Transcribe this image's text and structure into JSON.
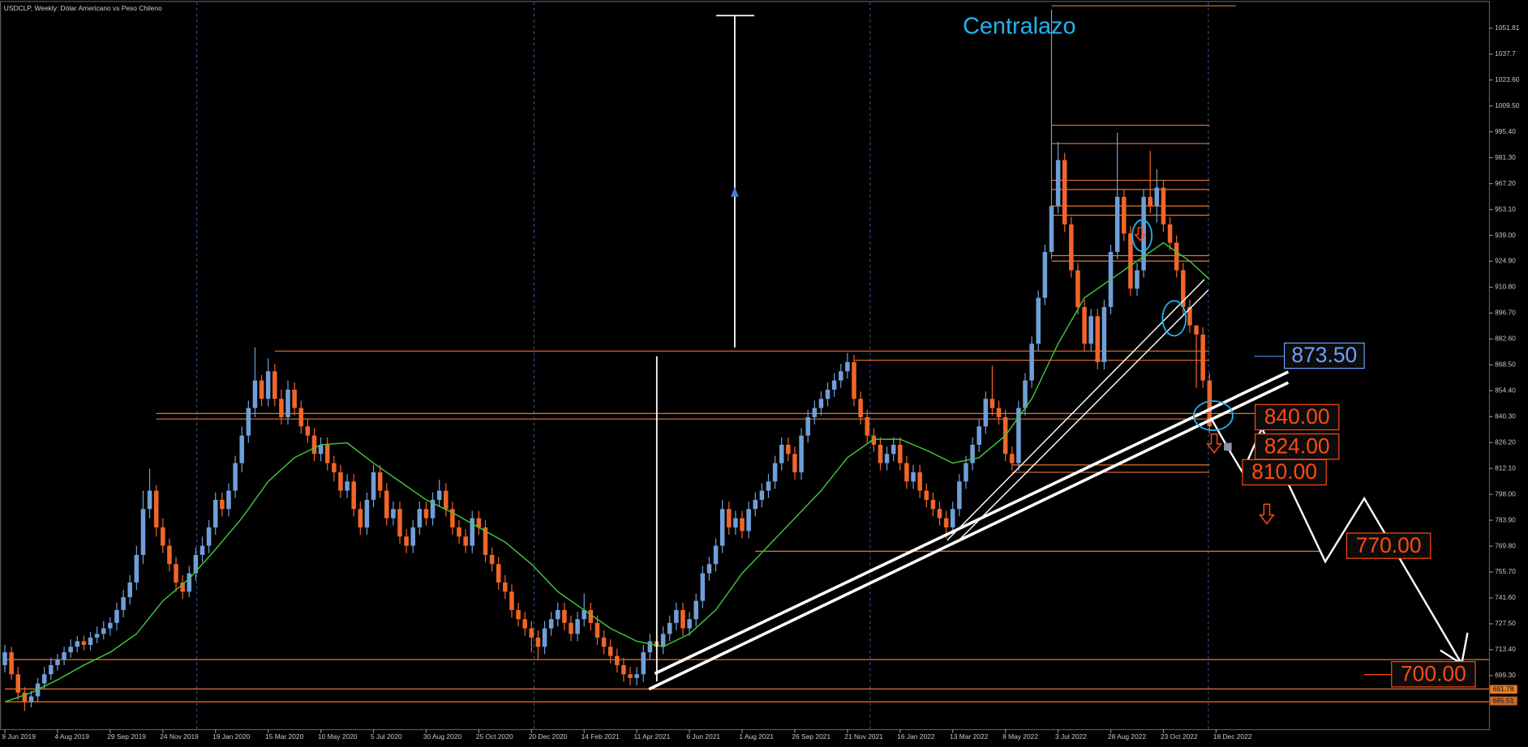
{
  "chart_data": {
    "type": "candlestick",
    "title": "USDCLP, Weekly:  Dólar Americano vs Peso Chileno",
    "annotation": "Centralazo",
    "up_color": "#6f9fd8",
    "down_color": "#f0652a",
    "open": [
      705,
      712,
      700,
      690,
      685,
      688,
      695,
      700,
      705,
      708,
      712,
      715,
      718,
      716,
      720,
      722,
      725,
      728,
      735,
      742,
      750,
      765,
      790,
      800,
      780,
      770,
      760,
      750,
      745,
      755,
      765,
      770,
      780,
      795,
      790,
      800,
      815,
      830,
      845,
      860,
      850,
      865,
      850,
      840,
      855,
      845,
      835,
      830,
      820,
      825,
      815,
      810,
      800,
      805,
      790,
      780,
      795,
      810,
      800,
      785,
      790,
      775,
      770,
      780,
      790,
      785,
      795,
      800,
      790,
      780,
      775,
      770,
      785,
      780,
      765,
      760,
      750,
      745,
      735,
      730,
      725,
      720,
      715,
      725,
      730,
      735,
      728,
      722,
      730,
      735,
      728,
      720,
      715,
      710,
      705,
      700,
      698,
      700,
      712,
      718,
      715,
      722,
      728,
      735,
      725,
      730,
      740,
      755,
      760,
      770,
      790,
      780,
      785,
      778,
      790,
      795,
      800,
      805,
      815,
      825,
      820,
      810,
      830,
      840,
      845,
      850,
      855,
      860,
      865,
      870,
      850,
      840,
      830,
      825,
      815,
      820,
      825,
      815,
      805,
      810,
      800,
      795,
      790,
      785,
      780,
      790,
      805,
      815,
      825,
      835,
      850,
      845,
      840,
      820,
      815,
      845,
      860,
      880,
      905,
      930,
      955,
      980,
      945,
      920,
      900,
      880,
      895,
      870,
      900,
      930,
      960,
      940,
      910,
      920,
      960,
      955,
      965,
      945,
      935,
      920,
      900,
      890,
      885,
      860
    ],
    "high": [
      716,
      715,
      704,
      693,
      691,
      698,
      704,
      709,
      711,
      715,
      719,
      721,
      721,
      723,
      726,
      729,
      731,
      739,
      746,
      754,
      770,
      800,
      812,
      803,
      785,
      774,
      764,
      754,
      759,
      769,
      775,
      784,
      799,
      799,
      804,
      819,
      835,
      849,
      878,
      863,
      872,
      869,
      855,
      860,
      859,
      849,
      839,
      834,
      829,
      829,
      819,
      814,
      809,
      809,
      794,
      799,
      814,
      814,
      804,
      794,
      794,
      779,
      784,
      794,
      794,
      799,
      806,
      804,
      794,
      784,
      779,
      789,
      789,
      784,
      769,
      764,
      754,
      749,
      739,
      734,
      729,
      724,
      729,
      734,
      739,
      739,
      732,
      734,
      744,
      739,
      732,
      724,
      719,
      714,
      709,
      704,
      704,
      716,
      722,
      722,
      726,
      732,
      739,
      739,
      734,
      744,
      759,
      764,
      774,
      795,
      794,
      789,
      789,
      794,
      799,
      804,
      809,
      819,
      829,
      829,
      824,
      834,
      844,
      849,
      854,
      859,
      864,
      869,
      875,
      874,
      854,
      844,
      834,
      829,
      824,
      829,
      829,
      819,
      814,
      814,
      804,
      799,
      794,
      789,
      794,
      809,
      819,
      829,
      839,
      854,
      868,
      849,
      844,
      824,
      849,
      864,
      884,
      909,
      934,
      1062,
      990,
      984,
      949,
      924,
      904,
      899,
      899,
      904,
      934,
      995,
      964,
      944,
      924,
      964,
      985,
      975,
      969,
      949,
      939,
      924,
      904,
      889,
      889,
      864
    ],
    "low": [
      701,
      697,
      686,
      680,
      682,
      685,
      692,
      697,
      702,
      705,
      709,
      712,
      713,
      713,
      717,
      719,
      721,
      724,
      731,
      738,
      746,
      760,
      785,
      775,
      766,
      756,
      745,
      741,
      742,
      751,
      761,
      766,
      776,
      786,
      786,
      796,
      810,
      826,
      840,
      846,
      846,
      846,
      836,
      836,
      841,
      831,
      826,
      816,
      816,
      811,
      805,
      796,
      796,
      786,
      776,
      776,
      791,
      796,
      781,
      781,
      771,
      766,
      766,
      776,
      781,
      781,
      791,
      786,
      776,
      771,
      766,
      766,
      776,
      761,
      756,
      746,
      741,
      731,
      726,
      721,
      712,
      708,
      711,
      721,
      726,
      724,
      718,
      718,
      726,
      724,
      716,
      711,
      706,
      701,
      696,
      694,
      694,
      696,
      708,
      711,
      711,
      718,
      724,
      721,
      721,
      726,
      736,
      751,
      756,
      766,
      776,
      776,
      774,
      774,
      786,
      791,
      796,
      801,
      811,
      816,
      806,
      806,
      826,
      836,
      841,
      846,
      851,
      856,
      861,
      846,
      836,
      826,
      821,
      811,
      811,
      816,
      811,
      801,
      801,
      796,
      791,
      786,
      781,
      774,
      776,
      786,
      801,
      811,
      821,
      831,
      841,
      836,
      816,
      811,
      811,
      841,
      856,
      876,
      901,
      926,
      951,
      941,
      916,
      896,
      876,
      876,
      866,
      866,
      896,
      926,
      936,
      906,
      906,
      916,
      951,
      946,
      941,
      931,
      916,
      896,
      886,
      856,
      856,
      831
    ],
    "close": [
      712,
      700,
      690,
      685,
      688,
      695,
      700,
      705,
      708,
      712,
      715,
      718,
      716,
      720,
      722,
      725,
      728,
      735,
      742,
      750,
      765,
      790,
      800,
      780,
      770,
      760,
      750,
      745,
      755,
      765,
      770,
      780,
      795,
      790,
      800,
      815,
      830,
      845,
      860,
      850,
      865,
      850,
      840,
      855,
      845,
      835,
      830,
      820,
      825,
      815,
      810,
      800,
      805,
      790,
      780,
      795,
      810,
      800,
      785,
      790,
      775,
      770,
      780,
      790,
      785,
      795,
      800,
      790,
      780,
      775,
      770,
      785,
      780,
      765,
      760,
      750,
      745,
      735,
      730,
      725,
      720,
      715,
      725,
      730,
      735,
      728,
      722,
      730,
      735,
      728,
      720,
      715,
      710,
      705,
      700,
      698,
      700,
      712,
      718,
      715,
      722,
      728,
      735,
      725,
      730,
      740,
      755,
      760,
      770,
      790,
      780,
      785,
      778,
      790,
      795,
      800,
      805,
      815,
      825,
      820,
      810,
      830,
      840,
      845,
      850,
      855,
      860,
      865,
      870,
      850,
      840,
      830,
      825,
      815,
      820,
      825,
      815,
      805,
      810,
      800,
      795,
      790,
      785,
      780,
      790,
      805,
      815,
      825,
      835,
      850,
      845,
      840,
      820,
      815,
      845,
      860,
      880,
      905,
      930,
      955,
      980,
      945,
      920,
      900,
      880,
      895,
      870,
      900,
      930,
      960,
      940,
      910,
      920,
      960,
      955,
      965,
      945,
      935,
      920,
      900,
      890,
      885,
      860,
      835
    ],
    "ma": {
      "color": "#3cc83c",
      "x": [
        0,
        4,
        8,
        12,
        16,
        20,
        24,
        28,
        32,
        36,
        40,
        44,
        48,
        52,
        56,
        60,
        64,
        68,
        72,
        76,
        80,
        84,
        88,
        92,
        96,
        100,
        104,
        108,
        112,
        116,
        120,
        124,
        128,
        132,
        136,
        140,
        144,
        148,
        152,
        156,
        160,
        164,
        168,
        172,
        176,
        180,
        183
      ],
      "values": [
        685,
        690,
        697,
        705,
        712,
        722,
        740,
        752,
        768,
        785,
        805,
        818,
        825,
        826,
        815,
        805,
        795,
        788,
        780,
        772,
        760,
        745,
        735,
        725,
        718,
        715,
        722,
        735,
        755,
        770,
        785,
        800,
        818,
        828,
        828,
        822,
        815,
        818,
        830,
        850,
        880,
        905,
        915,
        925,
        935,
        925,
        915
      ]
    },
    "levels": [
      {
        "value": 1064,
        "from": 159,
        "to": 187
      },
      {
        "value": 999,
        "from": 159,
        "to": 183
      },
      {
        "value": 989,
        "from": 159,
        "to": 183
      },
      {
        "value": 969,
        "from": 159,
        "to": 183
      },
      {
        "value": 964,
        "from": 159,
        "to": 183
      },
      {
        "value": 955,
        "from": 159,
        "to": 183
      },
      {
        "value": 950,
        "from": 159,
        "to": 183
      },
      {
        "value": 928,
        "from": 159,
        "to": 183
      },
      {
        "value": 925,
        "from": 159,
        "to": 183
      },
      {
        "value": 876,
        "from": 41,
        "to": 183
      },
      {
        "value": 871,
        "from": 129,
        "to": 183
      },
      {
        "value": 842,
        "from": 23,
        "to": 192
      },
      {
        "value": 839,
        "from": 23,
        "to": 183
      },
      {
        "value": 814,
        "from": 153,
        "to": 183
      },
      {
        "value": 810,
        "from": 153,
        "to": 183
      },
      {
        "value": 767,
        "from": 114,
        "to": 200
      },
      {
        "value": 708,
        "from": 0,
        "to": 226
      },
      {
        "value": 692,
        "from": 0,
        "to": 226
      },
      {
        "value": 685,
        "from": 0,
        "to": 226
      }
    ],
    "level_color": "#e8742e",
    "price_labels": [
      {
        "value": 873.5,
        "label": "873.50",
        "color": "#6f9fff"
      },
      {
        "value": 840,
        "label": "840.00",
        "color": "#ff4a12"
      },
      {
        "value": 824,
        "label": "824.00",
        "color": "#ff4a12"
      },
      {
        "value": 810,
        "label": "810.00",
        "color": "#ff4a12"
      },
      {
        "value": 770,
        "label": "770.00",
        "color": "#ff4a12"
      },
      {
        "value": 700,
        "label": "700.00",
        "color": "#ff4a12"
      }
    ],
    "axis_markers": [
      691.78,
      {
        "value": 685.51,
        "label": "685.51"
      }
    ],
    "xlim": [
      -0.74,
      225.46
    ],
    "ylim": [
      670.15,
      1065.06
    ],
    "yticks": [
      {
        "value": 699.3,
        "label": "699.30"
      },
      {
        "value": 713.4,
        "label": "713.40"
      },
      {
        "value": 727.5,
        "label": "727.50"
      },
      {
        "value": 741.6,
        "label": "741.60"
      },
      {
        "value": 755.7,
        "label": "755.70"
      },
      {
        "value": 769.8,
        "label": "769.80"
      },
      {
        "value": 783.9,
        "label": "783.90"
      },
      {
        "value": 798,
        "label": "798.00"
      },
      {
        "value": 812.1,
        "label": "812.10"
      },
      {
        "value": 826.2,
        "label": "826.20"
      },
      {
        "value": 840.3,
        "label": "840.30"
      },
      {
        "value": 854.4,
        "label": "854.40"
      },
      {
        "value": 868.5,
        "label": "868.50"
      },
      {
        "value": 882.6,
        "label": "882.60"
      },
      {
        "value": 896.7,
        "label": "896.70"
      },
      {
        "value": 910.8,
        "label": "910.80"
      },
      {
        "value": 924.9,
        "label": "924.90"
      },
      {
        "value": 939,
        "label": "939.00"
      },
      {
        "value": 953.1,
        "label": "953.10"
      },
      {
        "value": 967.2,
        "label": "967.20"
      },
      {
        "value": 981.3,
        "label": "981.30"
      },
      {
        "value": 995.4,
        "label": "995.40"
      },
      {
        "value": 1009.5,
        "label": "1009.50"
      },
      {
        "value": 1023.6,
        "label": "1023.60"
      },
      1037.7,
      1051.81
    ],
    "xticks": [
      {
        "value": 0,
        "label": "9 Jun 2019"
      },
      {
        "value": 8,
        "label": "4 Aug 2019"
      },
      {
        "value": 16,
        "label": "29 Sep 2019"
      },
      {
        "value": 24,
        "label": "24 Nov 2019"
      },
      {
        "value": 32,
        "label": "19 Jan 2020"
      },
      {
        "value": 40,
        "label": "15 Mar 2020"
      },
      {
        "value": 48,
        "label": "10 May 2020"
      },
      {
        "value": 56,
        "label": "5 Jul 2020"
      },
      {
        "value": 64,
        "label": "30 Aug 2020"
      },
      {
        "value": 72,
        "label": "25 Oct 2020"
      },
      {
        "value": 80,
        "label": "20 Dec 2020"
      },
      {
        "value": 88,
        "label": "14 Feb 2021"
      },
      {
        "value": 96,
        "label": "11 Apr 2021"
      },
      {
        "value": 104,
        "label": "6 Jun 2021"
      },
      {
        "value": 112,
        "label": "1 Aug 2021"
      },
      {
        "value": 120,
        "label": "26 Sep 2021"
      },
      {
        "value": 128,
        "label": "21 Nov 2021"
      },
      {
        "value": 136,
        "label": "16 Jan 2022"
      },
      {
        "value": 144,
        "label": "13 Mar 2022"
      },
      {
        "value": 152,
        "label": "8 May 2022"
      },
      {
        "value": 160,
        "label": "3 Jul 2022"
      },
      {
        "value": 168,
        "label": "28 Aug 2022"
      },
      {
        "value": 176,
        "label": "23 Oct 2022"
      },
      {
        "value": 184,
        "label": "18 Dec 2022"
      }
    ],
    "grid": false
  }
}
